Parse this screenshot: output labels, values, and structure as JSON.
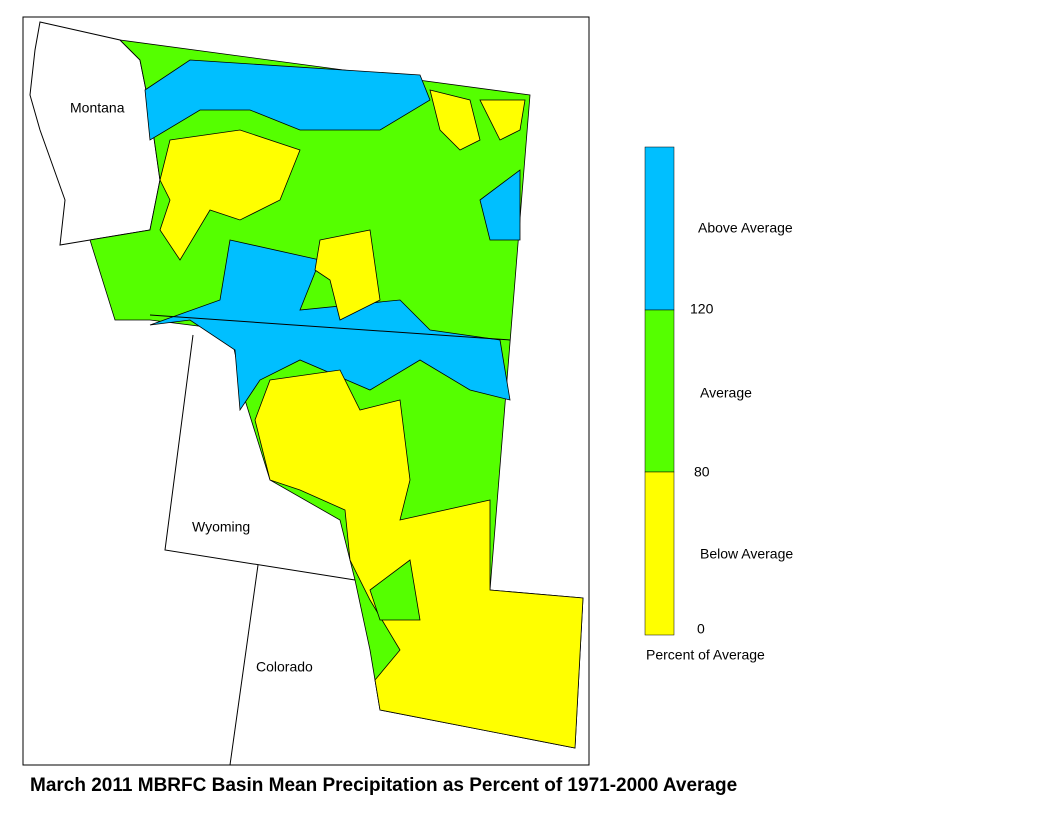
{
  "map": {
    "states": [
      {
        "label": "Montana"
      },
      {
        "label": "Wyoming"
      },
      {
        "label": "Colorado"
      }
    ]
  },
  "legend": {
    "bands": [
      {
        "label": "Above Average",
        "color": "#00bfff"
      },
      {
        "label": "Average",
        "color": "#55ff00"
      },
      {
        "label": "Below Average",
        "color": "#ffff00"
      }
    ],
    "ticks": [
      120,
      80,
      0
    ],
    "caption": "Percent of Average"
  },
  "title": "March 2011 MBRFC Basin Mean Precipitation as Percent of 1971-2000 Average"
}
